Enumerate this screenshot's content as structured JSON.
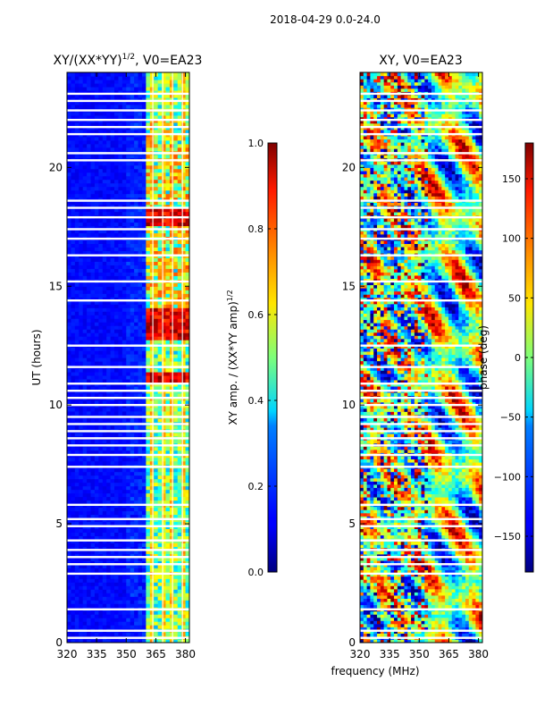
{
  "figure": {
    "suptitle": "2018-04-29 0.0-24.0",
    "shared_xlabel": "frequency (MHz)"
  },
  "chart_data": [
    {
      "type": "heatmap",
      "name": "amplitude",
      "title_main": "XY/(XX*YY)",
      "title_exp": "1/2",
      "title_tail": ", V0=EA23",
      "xlabel": "",
      "ylabel": "UT (hours)",
      "xlim": [
        320,
        382
      ],
      "ylim": [
        0,
        24
      ],
      "xticks": [
        320,
        335,
        350,
        365,
        380
      ],
      "yticks": [
        0,
        5,
        10,
        15,
        20
      ],
      "colorbar": {
        "label_main": "XY amp. / (XX*YY amp)",
        "label_exp": "1/2",
        "range": [
          0.0,
          1.0
        ],
        "ticks": [
          "0.0",
          "0.2",
          "0.4",
          "0.6",
          "0.8",
          "1.0"
        ],
        "tick_values": [
          0.0,
          0.2,
          0.4,
          0.6,
          0.8,
          1.0
        ],
        "colormap": "jet"
      },
      "active_band_start_mhz": 360,
      "channel_boundaries_mhz": [
        363.5,
        368.5,
        373.5,
        378.5
      ],
      "hot_rows_ut": [
        11.2,
        12.9,
        13.2,
        13.6,
        13.9,
        17.8,
        18.1
      ],
      "flagged_rows_ut": [
        0.2,
        0.5,
        1.4,
        2.9,
        3.3,
        3.6,
        3.9,
        4.3,
        4.9,
        5.2,
        5.8,
        7.4,
        7.9,
        8.3,
        8.6,
        8.9,
        9.2,
        9.5,
        10.0,
        10.3,
        10.6,
        10.9,
        11.6,
        12.5,
        14.4,
        15.2,
        16.3,
        17.0,
        17.4,
        17.9,
        18.3,
        18.6,
        20.3,
        20.6,
        21.4,
        21.7,
        22.0,
        22.4,
        22.8,
        23.1
      ]
    },
    {
      "type": "heatmap",
      "name": "phase",
      "title": "XY, V0=EA23",
      "xlabel": "frequency (MHz)",
      "ylabel": "",
      "xlim": [
        320,
        382
      ],
      "ylim": [
        0,
        24
      ],
      "xticks": [
        320,
        335,
        350,
        365,
        380
      ],
      "yticks": [
        0,
        5,
        10,
        15,
        20
      ],
      "colorbar": {
        "label": "phase (deg)",
        "range": [
          -180,
          180
        ],
        "ticks": [
          "−150",
          "−100",
          "−50",
          "0",
          "50",
          "100",
          "150"
        ],
        "tick_values": [
          -150,
          -100,
          -50,
          0,
          50,
          100,
          150
        ],
        "colormap": "jet"
      },
      "flagged_rows_ut": [
        0.2,
        0.5,
        1.4,
        2.9,
        3.3,
        3.6,
        3.9,
        4.3,
        4.9,
        5.2,
        5.8,
        7.4,
        7.9,
        8.3,
        8.6,
        8.9,
        9.2,
        9.5,
        10.0,
        10.3,
        10.6,
        10.9,
        11.6,
        12.5,
        14.4,
        15.2,
        16.3,
        17.0,
        17.4,
        17.9,
        18.3,
        18.6,
        20.3,
        20.6,
        21.4,
        21.7,
        22.0,
        22.4,
        22.8,
        23.1
      ]
    }
  ]
}
